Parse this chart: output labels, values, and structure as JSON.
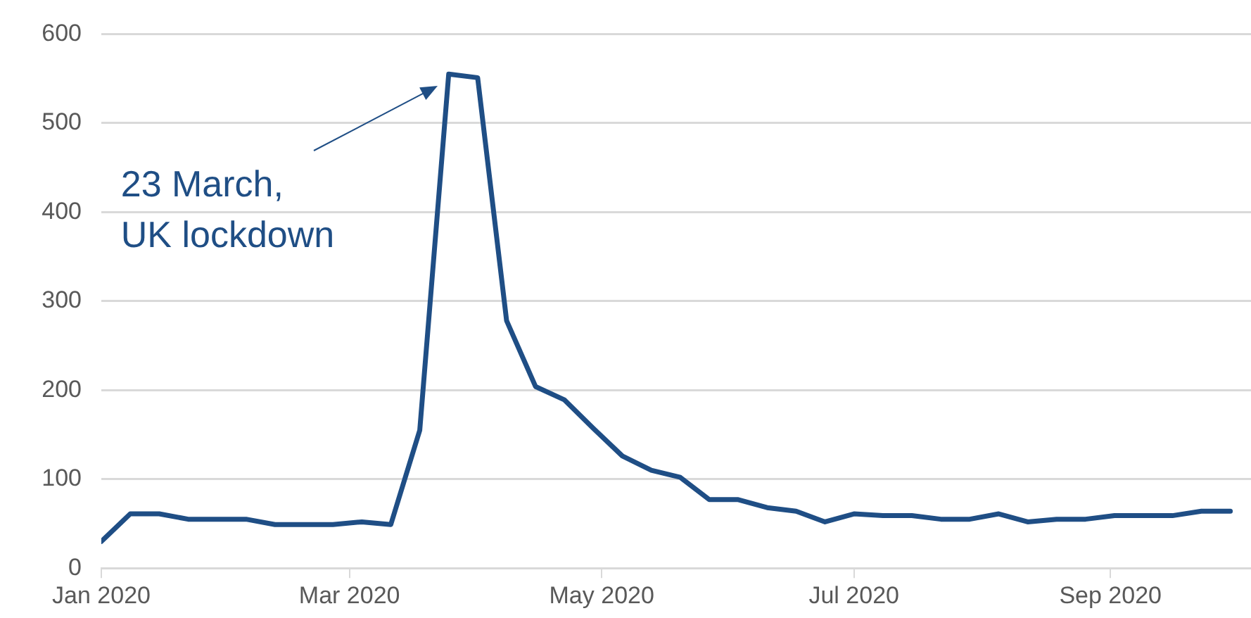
{
  "chart_data": {
    "type": "line",
    "x": [
      "2020-01-01",
      "2020-01-08",
      "2020-01-15",
      "2020-01-22",
      "2020-01-29",
      "2020-02-05",
      "2020-02-12",
      "2020-02-19",
      "2020-02-26",
      "2020-03-04",
      "2020-03-11",
      "2020-03-18",
      "2020-03-25",
      "2020-04-01",
      "2020-04-08",
      "2020-04-15",
      "2020-04-22",
      "2020-04-29",
      "2020-05-06",
      "2020-05-13",
      "2020-05-20",
      "2020-05-27",
      "2020-06-03",
      "2020-06-10",
      "2020-06-17",
      "2020-06-24",
      "2020-07-01",
      "2020-07-08",
      "2020-07-15",
      "2020-07-22",
      "2020-07-29",
      "2020-08-05",
      "2020-08-12",
      "2020-08-19",
      "2020-08-26",
      "2020-09-02",
      "2020-09-09",
      "2020-09-16",
      "2020-09-23",
      "2020-09-30"
    ],
    "series": [
      {
        "color": "#1f4e85",
        "values": [
          30,
          61,
          61,
          55,
          55,
          55,
          49,
          49,
          49,
          52,
          49,
          155,
          555,
          551,
          278,
          204,
          189,
          157,
          126,
          110,
          102,
          77,
          77,
          68,
          64,
          52,
          61,
          59,
          59,
          55,
          55,
          61,
          52,
          55,
          55,
          59,
          59,
          59,
          64,
          64
        ]
      }
    ],
    "xlim": [
      "2020-01-01",
      "2020-10-05"
    ],
    "xticks": [
      {
        "value": "2020-01-01",
        "label": "Jan 2020"
      },
      {
        "value": "2020-03-01",
        "label": "Mar 2020"
      },
      {
        "value": "2020-05-01",
        "label": "May 2020"
      },
      {
        "value": "2020-07-01",
        "label": "Jul 2020"
      },
      {
        "value": "2020-09-01",
        "label": "Sep 2020"
      }
    ],
    "ylim": [
      0,
      600
    ],
    "yticks": [
      0,
      100,
      200,
      300,
      400,
      500,
      600
    ],
    "grid": "y",
    "legend": false,
    "marker": "none",
    "line_style": "solid",
    "annotations": [
      "23 March,\nUK lockdown"
    ]
  }
}
